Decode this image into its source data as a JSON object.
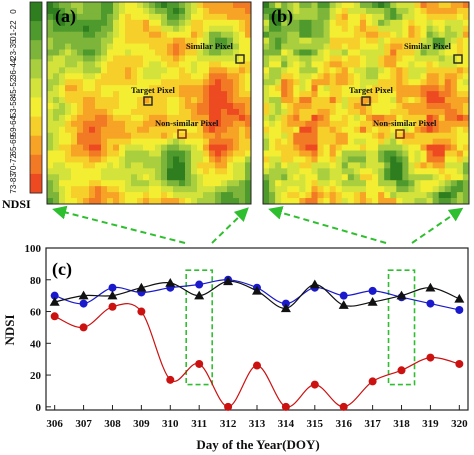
{
  "legend": {
    "title": "NDSI",
    "classes": [
      {
        "label": "0",
        "color": "#2e7d1f"
      },
      {
        "label": "01-22",
        "color": "#4f9a2c"
      },
      {
        "label": "23-35",
        "color": "#7cb53a"
      },
      {
        "label": "36-44",
        "color": "#a9cf3f"
      },
      {
        "label": "45-52",
        "color": "#d4e33b"
      },
      {
        "label": "53-58",
        "color": "#f3ee32"
      },
      {
        "label": "59-64",
        "color": "#f7cf2a"
      },
      {
        "label": "65-69",
        "color": "#f6a326"
      },
      {
        "label": "70-72",
        "color": "#f27a24"
      },
      {
        "label": "73-83",
        "color": "#ee4a22"
      }
    ]
  },
  "map_a": {
    "panel_label": "(a)",
    "similar_pixel_label": "Similar Pixel",
    "target_pixel_label": "Target Pixel",
    "nonsimilar_pixel_label": "Non-similar Pixel"
  },
  "map_b": {
    "panel_label": "(b)",
    "similar_pixel_label": "Similar Pixel",
    "target_pixel_label": "Target Pixel",
    "nonsimilar_pixel_label": "Non-similar Pixel"
  },
  "chart_data": {
    "type": "line",
    "panel_label": "(c)",
    "xlabel": "Day of the Year(DOY)",
    "ylabel": "NDSI",
    "x": [
      306,
      307,
      308,
      309,
      310,
      311,
      312,
      313,
      314,
      315,
      316,
      317,
      318,
      319,
      320
    ],
    "xlim": [
      305.7,
      320.3
    ],
    "ylim": [
      -2,
      100
    ],
    "yticks": [
      0,
      20,
      40,
      60,
      80,
      100
    ],
    "series": [
      {
        "color": "#1a1acc",
        "marker": "circle",
        "values": [
          70,
          65,
          75,
          72,
          75,
          77,
          80,
          75,
          65,
          75,
          70,
          73,
          69,
          65,
          61
        ]
      },
      {
        "color": "#111111",
        "marker": "triangle",
        "values": [
          66,
          70,
          70,
          75,
          78,
          70,
          79,
          73,
          62,
          77,
          64,
          66,
          70,
          75,
          68
        ]
      },
      {
        "color": "#cc1111",
        "marker": "circle",
        "values": [
          57,
          50,
          63,
          60,
          17,
          27,
          0,
          26,
          0,
          14,
          0,
          16,
          23,
          31,
          27
        ]
      }
    ],
    "highlight_days": [
      311,
      318
    ]
  }
}
